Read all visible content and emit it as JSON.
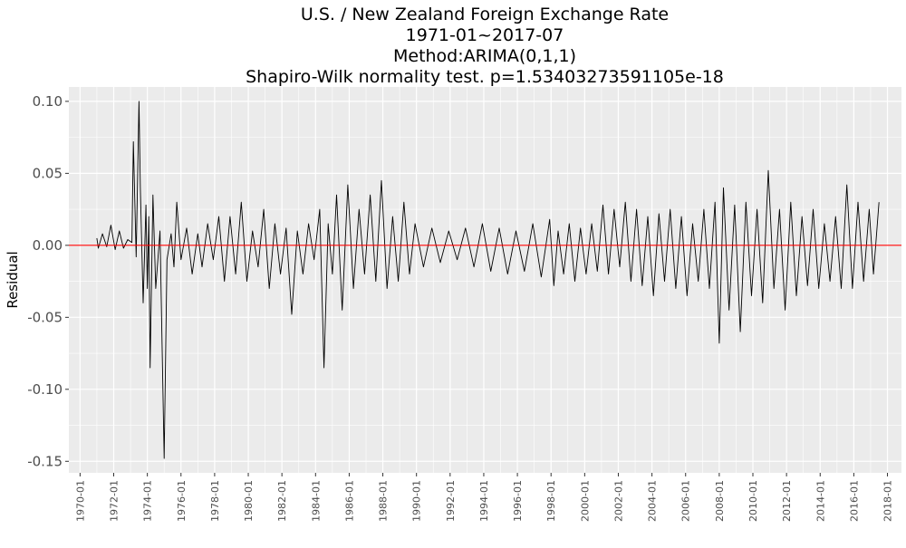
{
  "chart_data": {
    "type": "line",
    "title_lines": [
      "U.S. / New Zealand Foreign Exchange Rate",
      "1971-01~2017-07",
      "Method:ARIMA(0,1,1)",
      "Shapiro-Wilk normality test. p=1.53403273591105e-18"
    ],
    "xlabel": "",
    "ylabel": "Residual",
    "x_range": [
      "1969-05",
      "2018-11"
    ],
    "ylim": [
      -0.158,
      0.11
    ],
    "y_ticks": [
      0.1,
      0.05,
      0.0,
      -0.05,
      -0.1,
      -0.15
    ],
    "y_tick_labels": [
      "0.10",
      "0.05",
      "0.00",
      "-0.05",
      "-0.10",
      "-0.15"
    ],
    "x_ticks": [
      "1970-01",
      "1972-01",
      "1974-01",
      "1976-01",
      "1978-01",
      "1980-01",
      "1982-01",
      "1984-01",
      "1986-01",
      "1988-01",
      "1990-01",
      "1992-01",
      "1994-01",
      "1996-01",
      "1998-01",
      "2000-01",
      "2002-01",
      "2004-01",
      "2006-01",
      "2008-01",
      "2010-01",
      "2012-01",
      "2014-01",
      "2016-01",
      "2018-01"
    ],
    "grid": true,
    "reference_line": {
      "y": 0,
      "color": "#ff0000"
    },
    "colors": {
      "panel": "#ebebeb",
      "grid": "#ffffff",
      "line": "#000000"
    },
    "series": [
      {
        "x": [
          "1971-01",
          "1971-02",
          "1971-05",
          "1971-08",
          "1971-11",
          "1972-02",
          "1972-05",
          "1972-08",
          "1972-11",
          "1973-02",
          "1973-03",
          "1973-05",
          "1973-07",
          "1973-08",
          "1973-10",
          "1973-12",
          "1974-01",
          "1974-02",
          "1974-03",
          "1974-05",
          "1974-07",
          "1974-10",
          "1975-01",
          "1975-03",
          "1975-06",
          "1975-08",
          "1975-10",
          "1976-01",
          "1976-05",
          "1976-09",
          "1977-01",
          "1977-04",
          "1977-08",
          "1977-12",
          "1978-04",
          "1978-08",
          "1978-12",
          "1979-04",
          "1979-08",
          "1979-12",
          "1980-04",
          "1980-08",
          "1980-12",
          "1981-04",
          "1981-08",
          "1981-12",
          "1982-04",
          "1982-08",
          "1982-12",
          "1983-04",
          "1983-08",
          "1983-12",
          "1984-04",
          "1984-07",
          "1984-10",
          "1985-01",
          "1985-04",
          "1985-08",
          "1985-12",
          "1986-04",
          "1986-08",
          "1986-12",
          "1987-04",
          "1987-08",
          "1987-12",
          "1988-04",
          "1988-08",
          "1988-12",
          "1989-04",
          "1989-08",
          "1989-12",
          "1990-06",
          "1990-12",
          "1991-06",
          "1991-12",
          "1992-06",
          "1992-12",
          "1993-06",
          "1993-12",
          "1994-06",
          "1994-12",
          "1995-06",
          "1995-12",
          "1996-06",
          "1996-12",
          "1997-06",
          "1997-12",
          "1998-03",
          "1998-06",
          "1998-10",
          "1999-02",
          "1999-06",
          "1999-10",
          "2000-02",
          "2000-06",
          "2000-10",
          "2001-02",
          "2001-06",
          "2001-10",
          "2002-02",
          "2002-06",
          "2002-10",
          "2003-02",
          "2003-06",
          "2003-10",
          "2004-02",
          "2004-06",
          "2004-10",
          "2005-02",
          "2005-06",
          "2005-10",
          "2006-02",
          "2006-06",
          "2006-10",
          "2007-02",
          "2007-06",
          "2007-10",
          "2008-01",
          "2008-04",
          "2008-08",
          "2008-12",
          "2009-04",
          "2009-08",
          "2009-12",
          "2010-04",
          "2010-08",
          "2010-12",
          "2011-04",
          "2011-08",
          "2011-12",
          "2012-04",
          "2012-08",
          "2012-12",
          "2013-04",
          "2013-08",
          "2013-12",
          "2014-04",
          "2014-08",
          "2014-12",
          "2015-04",
          "2015-08",
          "2015-12",
          "2016-04",
          "2016-08",
          "2016-12",
          "2017-03",
          "2017-07"
        ],
        "values": [
          0.005,
          -0.002,
          0.008,
          -0.001,
          0.014,
          -0.003,
          0.01,
          -0.002,
          0.004,
          0.002,
          0.072,
          -0.008,
          0.1,
          0.04,
          -0.04,
          0.028,
          -0.03,
          0.02,
          -0.085,
          0.035,
          -0.03,
          0.01,
          -0.148,
          -0.01,
          0.008,
          -0.015,
          0.03,
          -0.01,
          0.012,
          -0.02,
          0.008,
          -0.015,
          0.015,
          -0.01,
          0.02,
          -0.025,
          0.02,
          -0.02,
          0.03,
          -0.025,
          0.01,
          -0.015,
          0.025,
          -0.03,
          0.015,
          -0.02,
          0.012,
          -0.048,
          0.01,
          -0.02,
          0.015,
          -0.01,
          0.025,
          -0.085,
          0.015,
          -0.02,
          0.035,
          -0.045,
          0.042,
          -0.03,
          0.025,
          -0.02,
          0.035,
          -0.025,
          0.045,
          -0.03,
          0.02,
          -0.025,
          0.03,
          -0.02,
          0.015,
          -0.015,
          0.012,
          -0.012,
          0.01,
          -0.01,
          0.012,
          -0.015,
          0.015,
          -0.018,
          0.012,
          -0.02,
          0.01,
          -0.018,
          0.015,
          -0.022,
          0.018,
          -0.028,
          0.01,
          -0.02,
          0.015,
          -0.025,
          0.012,
          -0.02,
          0.015,
          -0.018,
          0.028,
          -0.02,
          0.025,
          -0.015,
          0.03,
          -0.025,
          0.025,
          -0.028,
          0.02,
          -0.035,
          0.022,
          -0.025,
          0.025,
          -0.03,
          0.02,
          -0.035,
          0.015,
          -0.025,
          0.025,
          -0.03,
          0.03,
          -0.068,
          0.04,
          -0.045,
          0.028,
          -0.06,
          0.03,
          -0.035,
          0.025,
          -0.04,
          0.052,
          -0.03,
          0.025,
          -0.045,
          0.03,
          -0.035,
          0.02,
          -0.028,
          0.025,
          -0.03,
          0.015,
          -0.025,
          0.02,
          -0.03,
          0.042,
          -0.03,
          0.03,
          -0.025,
          0.025,
          -0.02,
          0.03
        ]
      }
    ]
  }
}
